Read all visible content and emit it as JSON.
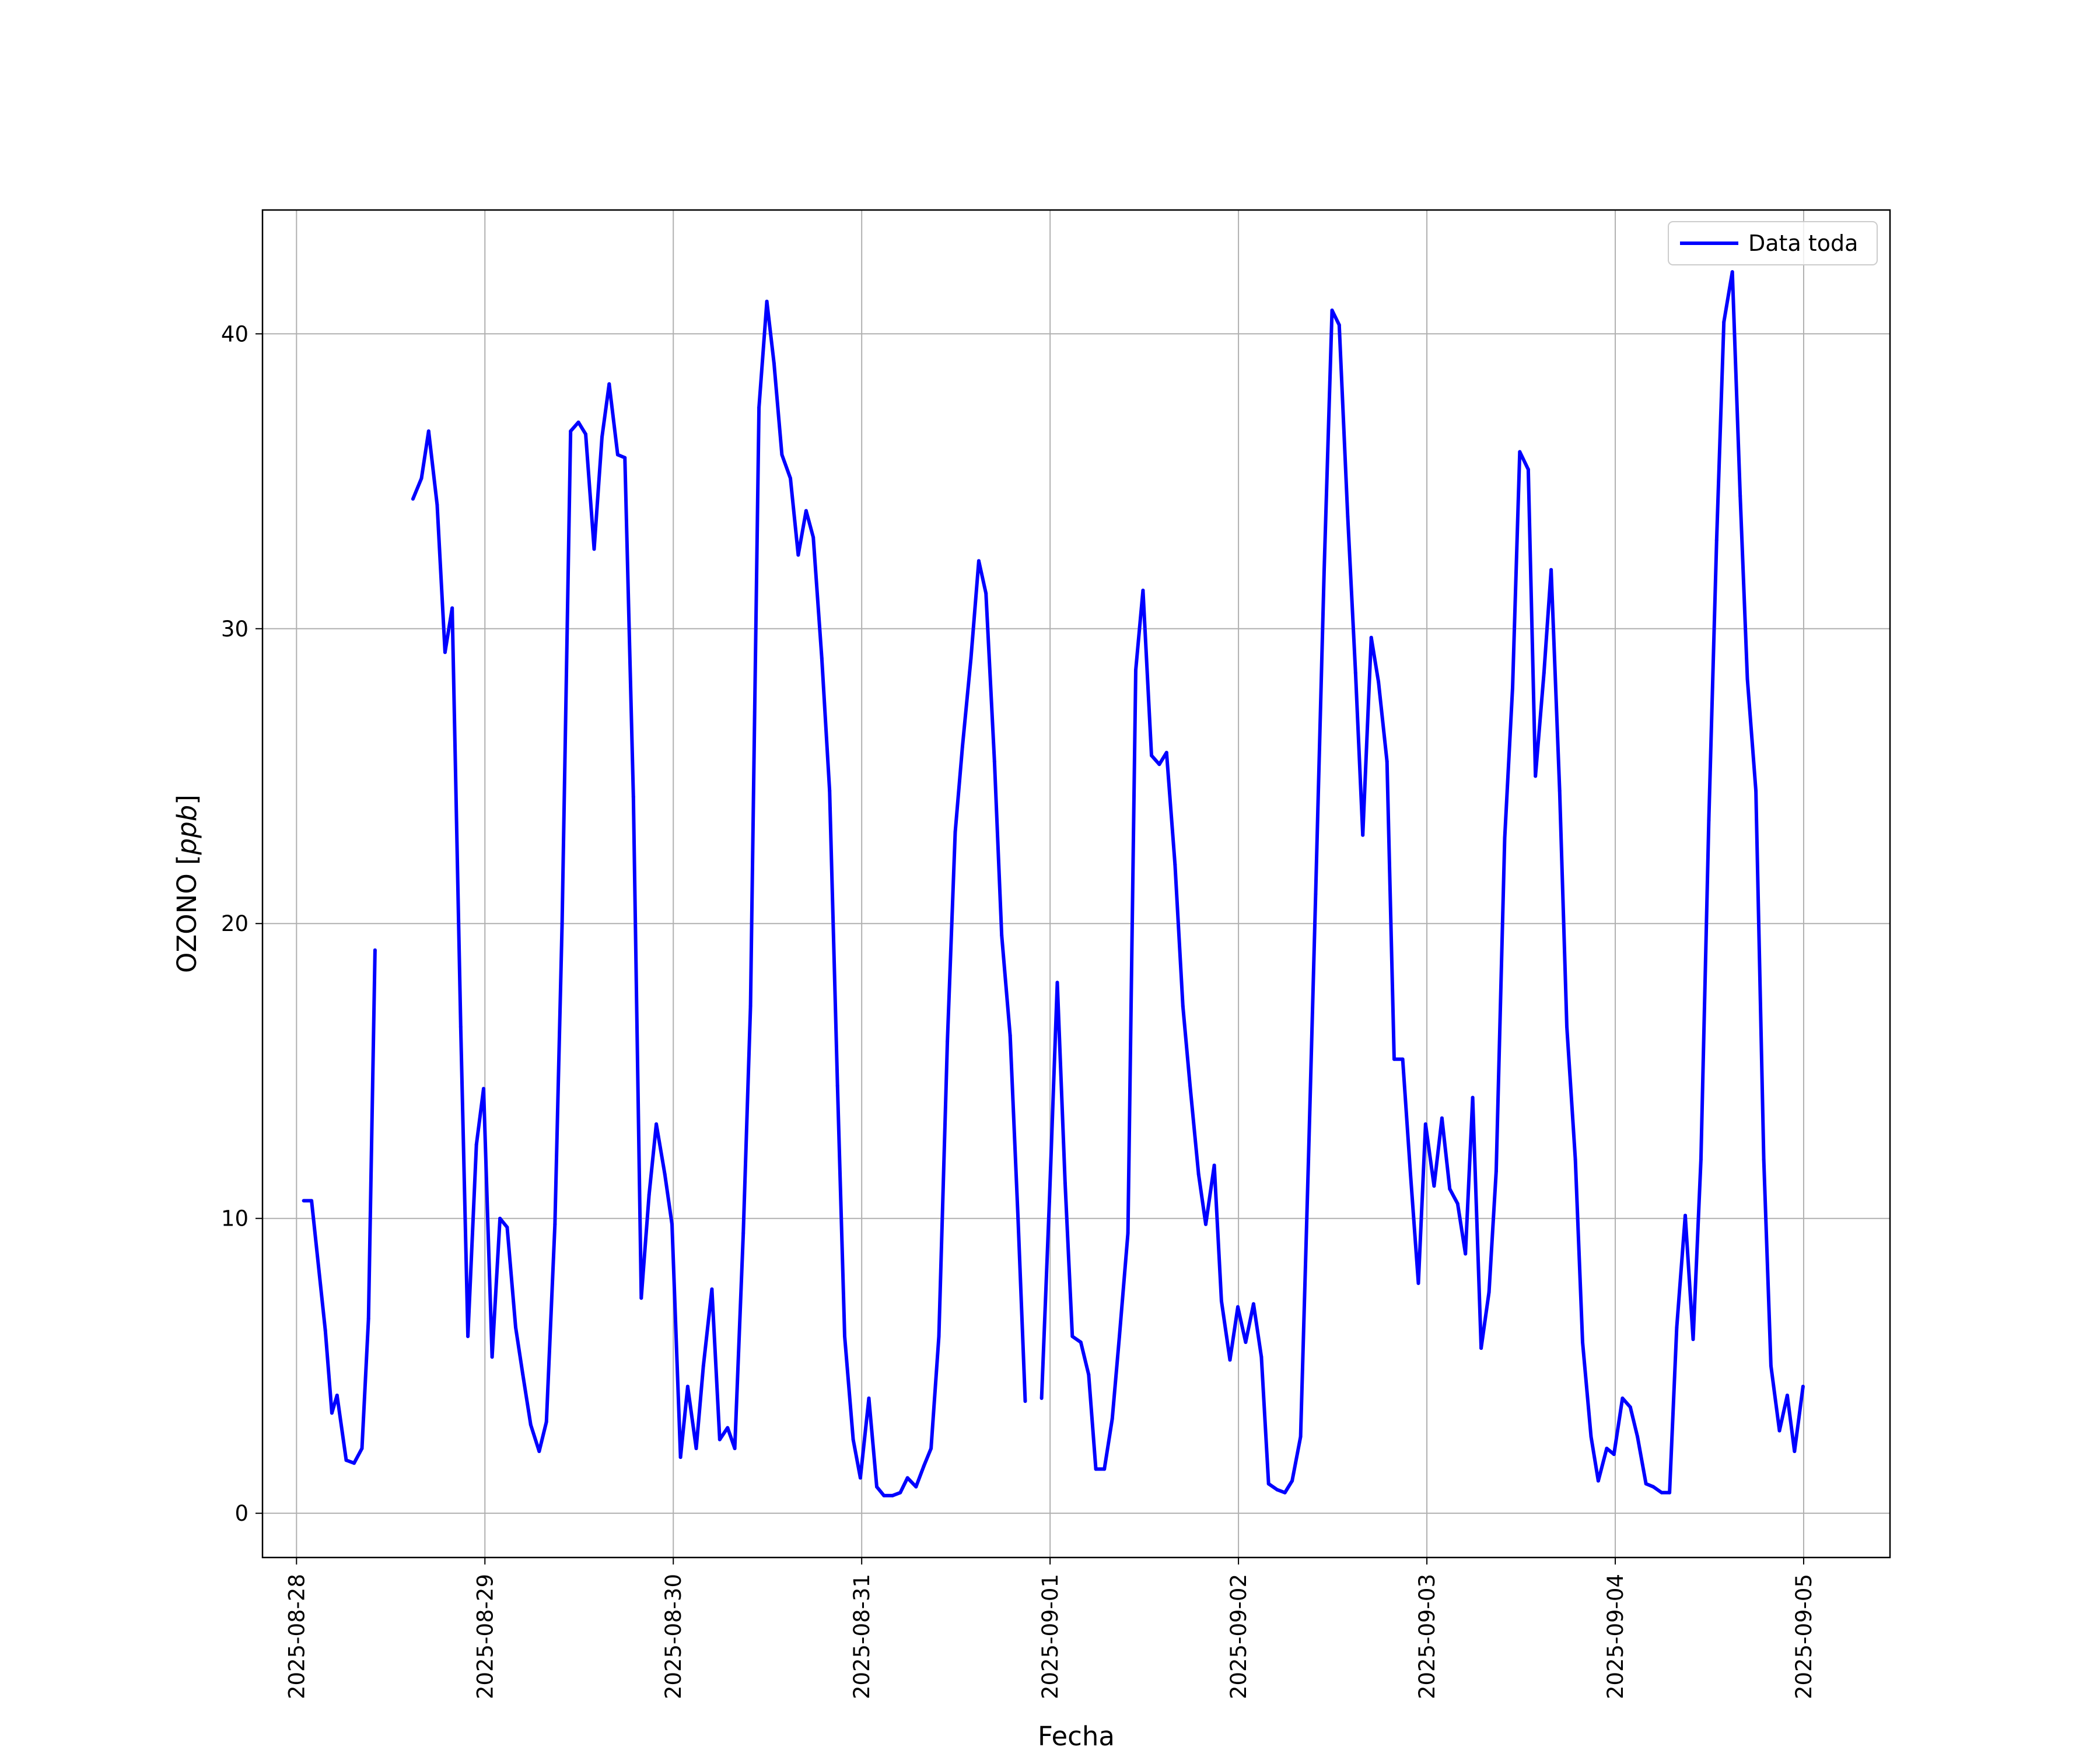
{
  "chart_data": {
    "type": "line",
    "xlabel": "Fecha",
    "ylabel_main": "OZONO [",
    "ylabel_unit": "ppb",
    "ylabel_close": "]",
    "xlim": [
      "2025-08-27T19:40",
      "2025-09-05T11:00"
    ],
    "ylim": [
      -1.5,
      44.2
    ],
    "grid": true,
    "legend_position": "top-right",
    "x_ticks": [
      "2025-08-28",
      "2025-08-29",
      "2025-08-30",
      "2025-08-31",
      "2025-09-01",
      "2025-09-02",
      "2025-09-03",
      "2025-09-04",
      "2025-09-05"
    ],
    "y_ticks": [
      0,
      10,
      20,
      30,
      40
    ],
    "color": "#0000ff",
    "series": [
      {
        "name": "Data toda",
        "points": [
          [
            "2025-08-28T00:55",
            10.6
          ],
          [
            "2025-08-28T01:55",
            10.6
          ],
          [
            "2025-08-28T03:40",
            6.2
          ],
          [
            "2025-08-28T04:30",
            3.4
          ],
          [
            "2025-08-28T05:10",
            4.0
          ],
          [
            "2025-08-28T06:20",
            1.8
          ],
          [
            "2025-08-28T07:20",
            1.7
          ],
          [
            "2025-08-28T08:20",
            2.2
          ],
          [
            "2025-08-28T09:10",
            6.6
          ],
          [
            "2025-08-28T10:00",
            19.1
          ],
          [
            "2025-08-28T10:55",
            null
          ],
          [
            "2025-08-28T14:50",
            34.4
          ],
          [
            "2025-08-28T15:55",
            35.1
          ],
          [
            "2025-08-28T16:50",
            36.7
          ],
          [
            "2025-08-28T17:55",
            34.2
          ],
          [
            "2025-08-28T18:55",
            29.2
          ],
          [
            "2025-08-28T19:50",
            30.7
          ],
          [
            "2025-08-28T20:55",
            16.5
          ],
          [
            "2025-08-28T21:50",
            6.0
          ],
          [
            "2025-08-28T22:55",
            12.5
          ],
          [
            "2025-08-28T23:50",
            14.4
          ],
          [
            "2025-08-29T00:55",
            5.3
          ],
          [
            "2025-08-29T01:55",
            10.0
          ],
          [
            "2025-08-29T02:50",
            9.7
          ],
          [
            "2025-08-29T03:55",
            6.3
          ],
          [
            "2025-08-29T04:50",
            4.7
          ],
          [
            "2025-08-29T05:50",
            3.0
          ],
          [
            "2025-08-29T06:55",
            2.1
          ],
          [
            "2025-08-29T07:50",
            3.1
          ],
          [
            "2025-08-29T08:55",
            9.8
          ],
          [
            "2025-08-29T09:50",
            20.0
          ],
          [
            "2025-08-29T10:55",
            36.7
          ],
          [
            "2025-08-29T11:55",
            37.0
          ],
          [
            "2025-08-29T12:50",
            36.6
          ],
          [
            "2025-08-29T13:55",
            32.7
          ],
          [
            "2025-08-29T14:55",
            36.5
          ],
          [
            "2025-08-29T15:50",
            38.3
          ],
          [
            "2025-08-29T16:55",
            35.9
          ],
          [
            "2025-08-29T17:50",
            35.8
          ],
          [
            "2025-08-29T18:55",
            24.3
          ],
          [
            "2025-08-29T19:55",
            7.3
          ],
          [
            "2025-08-29T20:55",
            10.8
          ],
          [
            "2025-08-29T21:50",
            13.2
          ],
          [
            "2025-08-29T22:55",
            11.5
          ],
          [
            "2025-08-29T23:50",
            9.8
          ],
          [
            "2025-08-30T00:55",
            1.9
          ],
          [
            "2025-08-30T01:50",
            4.3
          ],
          [
            "2025-08-30T02:55",
            2.2
          ],
          [
            "2025-08-30T03:50",
            5.0
          ],
          [
            "2025-08-30T04:55",
            7.6
          ],
          [
            "2025-08-30T05:55",
            2.5
          ],
          [
            "2025-08-30T06:55",
            2.9
          ],
          [
            "2025-08-30T07:50",
            2.2
          ],
          [
            "2025-08-30T08:55",
            9.5
          ],
          [
            "2025-08-30T09:50",
            17.2
          ],
          [
            "2025-08-30T10:55",
            37.5
          ],
          [
            "2025-08-30T11:55",
            41.1
          ],
          [
            "2025-08-30T12:50",
            39.0
          ],
          [
            "2025-08-30T13:50",
            35.9
          ],
          [
            "2025-08-30T14:55",
            35.1
          ],
          [
            "2025-08-30T15:55",
            32.5
          ],
          [
            "2025-08-30T16:55",
            34.0
          ],
          [
            "2025-08-30T17:50",
            33.1
          ],
          [
            "2025-08-30T18:55",
            29.0
          ],
          [
            "2025-08-30T19:55",
            24.5
          ],
          [
            "2025-08-30T20:55",
            14.5
          ],
          [
            "2025-08-30T21:50",
            6.0
          ],
          [
            "2025-08-30T22:55",
            2.5
          ],
          [
            "2025-08-30T23:50",
            1.2
          ],
          [
            "2025-08-31T00:55",
            3.9
          ],
          [
            "2025-08-31T01:55",
            0.9
          ],
          [
            "2025-08-31T02:50",
            0.6
          ],
          [
            "2025-08-31T03:55",
            0.6
          ],
          [
            "2025-08-31T04:55",
            0.7
          ],
          [
            "2025-08-31T05:50",
            1.2
          ],
          [
            "2025-08-31T06:55",
            0.9
          ],
          [
            "2025-08-31T07:55",
            1.6
          ],
          [
            "2025-08-31T08:50",
            2.2
          ],
          [
            "2025-08-31T09:50",
            6.0
          ],
          [
            "2025-08-31T10:55",
            16.0
          ],
          [
            "2025-08-31T11:55",
            23.1
          ],
          [
            "2025-08-31T12:50",
            26.0
          ],
          [
            "2025-08-31T13:55",
            29.0
          ],
          [
            "2025-08-31T14:55",
            32.3
          ],
          [
            "2025-08-31T15:50",
            31.2
          ],
          [
            "2025-08-31T16:55",
            25.5
          ],
          [
            "2025-08-31T17:50",
            19.6
          ],
          [
            "2025-08-31T18:55",
            16.2
          ],
          [
            "2025-08-31T19:55",
            10.0
          ],
          [
            "2025-08-31T20:50",
            3.8
          ],
          [
            "2025-08-31T21:55",
            null
          ],
          [
            "2025-08-31T22:55",
            3.9
          ],
          [
            "2025-08-31T23:55",
            10.6
          ],
          [
            "2025-09-01T00:55",
            18.0
          ],
          [
            "2025-09-01T01:55",
            11.2
          ],
          [
            "2025-09-01T02:50",
            6.0
          ],
          [
            "2025-09-01T03:55",
            5.8
          ],
          [
            "2025-09-01T04:55",
            4.7
          ],
          [
            "2025-09-01T05:50",
            1.5
          ],
          [
            "2025-09-01T06:55",
            1.5
          ],
          [
            "2025-09-01T07:55",
            3.2
          ],
          [
            "2025-09-01T08:50",
            6.0
          ],
          [
            "2025-09-01T09:55",
            9.5
          ],
          [
            "2025-09-01T10:55",
            28.6
          ],
          [
            "2025-09-01T11:50",
            31.3
          ],
          [
            "2025-09-01T12:55",
            25.7
          ],
          [
            "2025-09-01T13:55",
            25.4
          ],
          [
            "2025-09-01T14:50",
            25.8
          ],
          [
            "2025-09-01T15:55",
            22.0
          ],
          [
            "2025-09-01T16:55",
            17.2
          ],
          [
            "2025-09-01T17:50",
            14.5
          ],
          [
            "2025-09-01T18:55",
            11.5
          ],
          [
            "2025-09-01T19:50",
            9.8
          ],
          [
            "2025-09-01T20:55",
            11.8
          ],
          [
            "2025-09-01T21:50",
            7.2
          ],
          [
            "2025-09-01T22:55",
            5.2
          ],
          [
            "2025-09-01T23:55",
            7.0
          ],
          [
            "2025-09-02T00:55",
            5.8
          ],
          [
            "2025-09-02T01:55",
            7.1
          ],
          [
            "2025-09-02T02:55",
            5.3
          ],
          [
            "2025-09-02T03:50",
            1.0
          ],
          [
            "2025-09-02T04:55",
            0.8
          ],
          [
            "2025-09-02T05:55",
            0.7
          ],
          [
            "2025-09-02T06:50",
            1.1
          ],
          [
            "2025-09-02T07:55",
            2.6
          ],
          [
            "2025-09-02T08:55",
            12.0
          ],
          [
            "2025-09-02T09:50",
            21.0
          ],
          [
            "2025-09-02T10:55",
            32.0
          ],
          [
            "2025-09-02T11:55",
            40.8
          ],
          [
            "2025-09-02T12:50",
            40.3
          ],
          [
            "2025-09-02T13:55",
            33.8
          ],
          [
            "2025-09-02T14:55",
            28.5
          ],
          [
            "2025-09-02T15:50",
            23.0
          ],
          [
            "2025-09-02T16:55",
            29.7
          ],
          [
            "2025-09-02T17:50",
            28.2
          ],
          [
            "2025-09-02T18:55",
            25.5
          ],
          [
            "2025-09-02T19:50",
            15.4
          ],
          [
            "2025-09-02T20:55",
            15.4
          ],
          [
            "2025-09-02T21:55",
            11.5
          ],
          [
            "2025-09-02T22:55",
            7.8
          ],
          [
            "2025-09-02T23:50",
            13.2
          ],
          [
            "2025-09-03T00:55",
            11.1
          ],
          [
            "2025-09-03T01:55",
            13.4
          ],
          [
            "2025-09-03T02:55",
            11.0
          ],
          [
            "2025-09-03T03:55",
            10.5
          ],
          [
            "2025-09-03T04:55",
            8.8
          ],
          [
            "2025-09-03T05:50",
            14.1
          ],
          [
            "2025-09-03T06:55",
            5.6
          ],
          [
            "2025-09-03T07:55",
            7.5
          ],
          [
            "2025-09-03T08:50",
            11.6
          ],
          [
            "2025-09-03T09:55",
            22.9
          ],
          [
            "2025-09-03T10:55",
            28.0
          ],
          [
            "2025-09-03T11:50",
            36.0
          ],
          [
            "2025-09-03T12:55",
            35.4
          ],
          [
            "2025-09-03T13:50",
            25.0
          ],
          [
            "2025-09-03T14:55",
            28.5
          ],
          [
            "2025-09-03T15:50",
            32.0
          ],
          [
            "2025-09-03T16:55",
            24.5
          ],
          [
            "2025-09-03T17:50",
            16.5
          ],
          [
            "2025-09-03T18:55",
            12.0
          ],
          [
            "2025-09-03T19:50",
            5.8
          ],
          [
            "2025-09-03T20:55",
            2.6
          ],
          [
            "2025-09-03T21:50",
            1.1
          ],
          [
            "2025-09-03T22:55",
            2.2
          ],
          [
            "2025-09-03T23:50",
            2.0
          ],
          [
            "2025-09-04T00:55",
            3.9
          ],
          [
            "2025-09-04T01:55",
            3.6
          ],
          [
            "2025-09-04T02:50",
            2.6
          ],
          [
            "2025-09-04T03:55",
            1.0
          ],
          [
            "2025-09-04T04:50",
            0.9
          ],
          [
            "2025-09-04T05:55",
            0.7
          ],
          [
            "2025-09-04T06:55",
            0.7
          ],
          [
            "2025-09-04T07:50",
            6.3
          ],
          [
            "2025-09-04T08:55",
            10.1
          ],
          [
            "2025-09-04T09:55",
            5.9
          ],
          [
            "2025-09-04T10:55",
            12.0
          ],
          [
            "2025-09-04T11:55",
            23.5
          ],
          [
            "2025-09-04T12:55",
            33.0
          ],
          [
            "2025-09-04T13:50",
            40.4
          ],
          [
            "2025-09-04T14:55",
            42.1
          ],
          [
            "2025-09-04T15:55",
            34.5
          ],
          [
            "2025-09-04T16:50",
            28.3
          ],
          [
            "2025-09-04T17:55",
            24.5
          ],
          [
            "2025-09-04T18:55",
            12.0
          ],
          [
            "2025-09-04T19:50",
            5.0
          ],
          [
            "2025-09-04T20:55",
            2.8
          ],
          [
            "2025-09-04T21:55",
            4.0
          ],
          [
            "2025-09-04T22:50",
            2.1
          ],
          [
            "2025-09-04T23:55",
            4.3
          ]
        ]
      }
    ]
  }
}
